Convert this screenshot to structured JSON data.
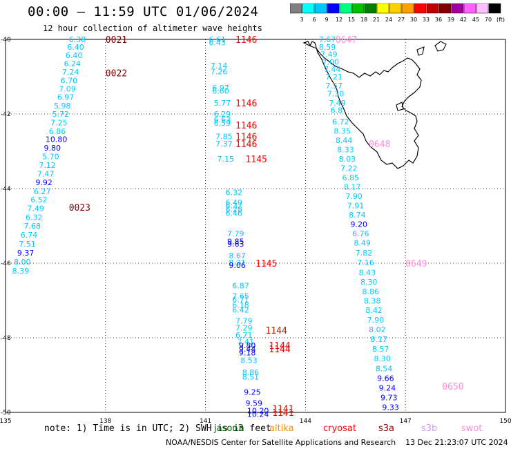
{
  "title": "00:00 – 11:59 UTC 01/06/2024",
  "subtitle": "12 hour collection of altimeter wave heights",
  "colorbar": {
    "labels": [
      "3",
      "6",
      "9",
      "12",
      "15",
      "18",
      "21",
      "24",
      "27",
      "30",
      "33",
      "36",
      "39",
      "42",
      "45",
      "70",
      "(ft)"
    ],
    "colors": [
      "#808080",
      "#00ffff",
      "#00c8ff",
      "#0000ff",
      "#00ff80",
      "#00c000",
      "#008000",
      "#ffff00",
      "#ffd000",
      "#ffa000",
      "#ff0000",
      "#c00000",
      "#800000",
      "#a000a0",
      "#ff60ff",
      "#ffc0ff",
      "#000000"
    ]
  },
  "axes": {
    "lon_ticks": [
      "135",
      "138",
      "141",
      "144",
      "147",
      "150"
    ],
    "lat_ticks": [
      "-40",
      "-42",
      "-44",
      "-46",
      "-48",
      "-50"
    ]
  },
  "note": "note: 1) Time is in UTC; 2) SWH is in feet",
  "satellites": [
    "jason3",
    "altika",
    "cryosat",
    "s3a",
    "s3b",
    "swot"
  ],
  "credit": "NOAA/NESDIS Center for Satellite Applications and Research    13 Dec 21:23:07 UTC 2024",
  "chart_data": {
    "type": "scatter",
    "xlim": [
      135,
      150
    ],
    "ylim": [
      -50,
      -40
    ],
    "time_labels": [
      {
        "text": "0021",
        "lon": 138.0,
        "lat": -40.0,
        "color": "#800000"
      },
      {
        "text": "0022",
        "lon": 138.0,
        "lat": -40.9,
        "color": "#800000"
      },
      {
        "text": "0023",
        "lon": 136.9,
        "lat": -44.5,
        "color": "#800000"
      },
      {
        "text": "1146",
        "lon": 141.9,
        "lat": -40.0,
        "color": "#ff0000"
      },
      {
        "text": "1146",
        "lon": 141.9,
        "lat": -41.7,
        "color": "#ff0000"
      },
      {
        "text": "1146",
        "lon": 141.9,
        "lat": -42.3,
        "color": "#ff0000"
      },
      {
        "text": "1146",
        "lon": 141.9,
        "lat": -42.6,
        "color": "#ff0000"
      },
      {
        "text": "1146",
        "lon": 141.9,
        "lat": -42.8,
        "color": "#ff0000"
      },
      {
        "text": "1145",
        "lon": 142.2,
        "lat": -43.2,
        "color": "#ff0000"
      },
      {
        "text": "1145",
        "lon": 142.5,
        "lat": -46.0,
        "color": "#ff0000"
      },
      {
        "text": "1144",
        "lon": 142.8,
        "lat": -47.8,
        "color": "#ff0000"
      },
      {
        "text": "1144",
        "lon": 142.9,
        "lat": -48.2,
        "color": "#ff0000"
      },
      {
        "text": "1144",
        "lon": 142.9,
        "lat": -48.3,
        "color": "#ff0000"
      },
      {
        "text": "1141",
        "lon": 143.0,
        "lat": -49.9,
        "color": "#ff0000"
      },
      {
        "text": "1141",
        "lon": 143.0,
        "lat": -50.0,
        "color": "#ff0000"
      },
      {
        "text": "0647",
        "lon": 144.9,
        "lat": -40.0,
        "color": "#ff8cd8"
      },
      {
        "text": "0648",
        "lon": 145.9,
        "lat": -42.8,
        "color": "#ff8cd8"
      },
      {
        "text": "0649",
        "lon": 147.0,
        "lat": -46.0,
        "color": "#ff8cd8"
      },
      {
        "text": "0650",
        "lon": 148.1,
        "lat": -49.3,
        "color": "#ff8cd8"
      }
    ],
    "points": [
      {
        "v": "6.38",
        "lon": 136.9,
        "lat": -40.0,
        "c": "#00c8ff"
      },
      {
        "v": "6.40",
        "lon": 136.85,
        "lat": -40.2,
        "c": "#00c8ff"
      },
      {
        "v": "6.40",
        "lon": 136.8,
        "lat": -40.43,
        "c": "#00c8ff"
      },
      {
        "v": "6.24",
        "lon": 136.75,
        "lat": -40.65,
        "c": "#00c8ff"
      },
      {
        "v": "7.24",
        "lon": 136.7,
        "lat": -40.87,
        "c": "#00c8ff"
      },
      {
        "v": "6.70",
        "lon": 136.65,
        "lat": -41.1,
        "c": "#00c8ff"
      },
      {
        "v": "7.09",
        "lon": 136.6,
        "lat": -41.32,
        "c": "#00c8ff"
      },
      {
        "v": "6.97",
        "lon": 136.55,
        "lat": -41.55,
        "c": "#00c8ff"
      },
      {
        "v": "5.98",
        "lon": 136.45,
        "lat": -41.78,
        "c": "#00c8ff"
      },
      {
        "v": "5.72",
        "lon": 136.4,
        "lat": -42.0,
        "c": "#00c8ff"
      },
      {
        "v": "7.25",
        "lon": 136.35,
        "lat": -42.23,
        "c": "#00c8ff"
      },
      {
        "v": "6.86",
        "lon": 136.3,
        "lat": -42.46,
        "c": "#00c8ff"
      },
      {
        "v": "10.80",
        "lon": 136.2,
        "lat": -42.68,
        "c": "#0000ff"
      },
      {
        "v": "9.80",
        "lon": 136.15,
        "lat": -42.91,
        "c": "#0000ff"
      },
      {
        "v": "5.70",
        "lon": 136.1,
        "lat": -43.14,
        "c": "#00c8ff"
      },
      {
        "v": "7.12",
        "lon": 136.0,
        "lat": -43.37,
        "c": "#00c8ff"
      },
      {
        "v": "7.47",
        "lon": 135.95,
        "lat": -43.6,
        "c": "#00c8ff"
      },
      {
        "v": "9.92",
        "lon": 135.9,
        "lat": -43.83,
        "c": "#0000ff"
      },
      {
        "v": "6.27",
        "lon": 135.85,
        "lat": -44.07,
        "c": "#00c8ff"
      },
      {
        "v": "6.52",
        "lon": 135.75,
        "lat": -44.3,
        "c": "#00c8ff"
      },
      {
        "v": "7.49",
        "lon": 135.65,
        "lat": -44.53,
        "c": "#00c8ff"
      },
      {
        "v": "6.32",
        "lon": 135.6,
        "lat": -44.77,
        "c": "#00c8ff"
      },
      {
        "v": "7.68",
        "lon": 135.55,
        "lat": -45.0,
        "c": "#00c8ff"
      },
      {
        "v": "6.74",
        "lon": 135.45,
        "lat": -45.24,
        "c": "#00c8ff"
      },
      {
        "v": "7.51",
        "lon": 135.4,
        "lat": -45.48,
        "c": "#00c8ff"
      },
      {
        "v": "9.37",
        "lon": 135.35,
        "lat": -45.72,
        "c": "#0000ff"
      },
      {
        "v": "8.00",
        "lon": 135.25,
        "lat": -45.96,
        "c": "#00c8ff"
      },
      {
        "v": "8.39",
        "lon": 135.2,
        "lat": -46.2,
        "c": "#00c8ff"
      },
      {
        "v": "6.61",
        "lon": 141.1,
        "lat": -40.0,
        "c": "#00c8ff"
      },
      {
        "v": "6.43",
        "lon": 141.1,
        "lat": -40.08,
        "c": "#00c8ff"
      },
      {
        "v": "7.14",
        "lon": 141.15,
        "lat": -40.7,
        "c": "#00c8ff"
      },
      {
        "v": "7.26",
        "lon": 141.15,
        "lat": -40.86,
        "c": "#00c8ff"
      },
      {
        "v": "6.97",
        "lon": 141.2,
        "lat": -41.3,
        "c": "#00c8ff"
      },
      {
        "v": "6.60",
        "lon": 141.2,
        "lat": -41.38,
        "c": "#00c8ff"
      },
      {
        "v": "5.77",
        "lon": 141.25,
        "lat": -41.7,
        "c": "#00c8ff"
      },
      {
        "v": "6.29",
        "lon": 141.25,
        "lat": -42.0,
        "c": "#00c8ff"
      },
      {
        "v": "6.63",
        "lon": 141.25,
        "lat": -42.15,
        "c": "#00c8ff"
      },
      {
        "v": "6.59",
        "lon": 141.25,
        "lat": -42.24,
        "c": "#00c8ff"
      },
      {
        "v": "7.85",
        "lon": 141.3,
        "lat": -42.6,
        "c": "#00c8ff"
      },
      {
        "v": "7.37",
        "lon": 141.3,
        "lat": -42.8,
        "c": "#00c8ff"
      },
      {
        "v": "7.15",
        "lon": 141.35,
        "lat": -43.2,
        "c": "#00c8ff"
      },
      {
        "v": "6.32",
        "lon": 141.6,
        "lat": -44.1,
        "c": "#00c8ff"
      },
      {
        "v": "6.49",
        "lon": 141.6,
        "lat": -44.37,
        "c": "#00c8ff"
      },
      {
        "v": "6.37",
        "lon": 141.6,
        "lat": -44.45,
        "c": "#00c8ff"
      },
      {
        "v": "6.28",
        "lon": 141.6,
        "lat": -44.56,
        "c": "#00c8ff"
      },
      {
        "v": "6.46",
        "lon": 141.6,
        "lat": -44.66,
        "c": "#00c8ff"
      },
      {
        "v": "7.79",
        "lon": 141.65,
        "lat": -45.2,
        "c": "#00c8ff"
      },
      {
        "v": "9.85",
        "lon": 141.65,
        "lat": -45.42,
        "c": "#0000ff"
      },
      {
        "v": "9.63",
        "lon": 141.65,
        "lat": -45.48,
        "c": "#0000ff"
      },
      {
        "v": "8.67",
        "lon": 141.7,
        "lat": -45.8,
        "c": "#00c8ff"
      },
      {
        "v": "8.31",
        "lon": 141.7,
        "lat": -45.98,
        "c": "#00c8ff"
      },
      {
        "v": "9.06",
        "lon": 141.7,
        "lat": -46.06,
        "c": "#0000ff"
      },
      {
        "v": "6.87",
        "lon": 141.8,
        "lat": -46.6,
        "c": "#00c8ff"
      },
      {
        "v": "7.65",
        "lon": 141.8,
        "lat": -46.88,
        "c": "#00c8ff"
      },
      {
        "v": "6.71",
        "lon": 141.8,
        "lat": -46.97,
        "c": "#00c8ff"
      },
      {
        "v": "6.18",
        "lon": 141.8,
        "lat": -47.12,
        "c": "#00c8ff"
      },
      {
        "v": "6.42",
        "lon": 141.8,
        "lat": -47.25,
        "c": "#00c8ff"
      },
      {
        "v": "7.79",
        "lon": 141.9,
        "lat": -47.55,
        "c": "#00c8ff"
      },
      {
        "v": "7.29",
        "lon": 141.9,
        "lat": -47.73,
        "c": "#00c8ff"
      },
      {
        "v": "6.71",
        "lon": 141.9,
        "lat": -47.93,
        "c": "#00c8ff"
      },
      {
        "v": "7.41",
        "lon": 141.95,
        "lat": -48.1,
        "c": "#00c8ff"
      },
      {
        "v": "9.80",
        "lon": 142.0,
        "lat": -48.2,
        "c": "#0000ff"
      },
      {
        "v": "9.44",
        "lon": 142.0,
        "lat": -48.3,
        "c": "#0000ff"
      },
      {
        "v": "9.18",
        "lon": 142.0,
        "lat": -48.4,
        "c": "#0000ff"
      },
      {
        "v": "8.53",
        "lon": 142.05,
        "lat": -48.6,
        "c": "#00c8ff"
      },
      {
        "v": "8.86",
        "lon": 142.1,
        "lat": -48.93,
        "c": "#00c8ff"
      },
      {
        "v": "8.51",
        "lon": 142.1,
        "lat": -49.05,
        "c": "#00c8ff"
      },
      {
        "v": "9.25",
        "lon": 142.15,
        "lat": -49.45,
        "c": "#0000ff"
      },
      {
        "v": "9.59",
        "lon": 142.2,
        "lat": -49.75,
        "c": "#0000ff"
      },
      {
        "v": "10.20",
        "lon": 142.25,
        "lat": -49.95,
        "c": "#0000ff"
      },
      {
        "v": "10.24",
        "lon": 142.25,
        "lat": -50.05,
        "c": "#0000ff"
      },
      {
        "v": "7.67",
        "lon": 144.4,
        "lat": -40.0,
        "c": "#00c8ff"
      },
      {
        "v": "8.59",
        "lon": 144.4,
        "lat": -40.2,
        "c": "#00c8ff"
      },
      {
        "v": "7.49",
        "lon": 144.45,
        "lat": -40.4,
        "c": "#00c8ff"
      },
      {
        "v": "7.00",
        "lon": 144.5,
        "lat": -40.6,
        "c": "#00c8ff"
      },
      {
        "v": "7.44",
        "lon": 144.55,
        "lat": -40.8,
        "c": "#00c8ff"
      },
      {
        "v": "7.21",
        "lon": 144.6,
        "lat": -41.0,
        "c": "#00c8ff"
      },
      {
        "v": "7.57",
        "lon": 144.6,
        "lat": -41.24,
        "c": "#00c8ff"
      },
      {
        "v": "7.30",
        "lon": 144.65,
        "lat": -41.45,
        "c": "#00c8ff"
      },
      {
        "v": "7.49",
        "lon": 144.7,
        "lat": -41.7,
        "c": "#00c8ff"
      },
      {
        "v": "6.8",
        "lon": 144.75,
        "lat": -41.9,
        "c": "#00c8ff"
      },
      {
        "v": "6.72",
        "lon": 144.8,
        "lat": -42.2,
        "c": "#00c8ff"
      },
      {
        "v": "8.35",
        "lon": 144.85,
        "lat": -42.45,
        "c": "#00c8ff"
      },
      {
        "v": "8.44",
        "lon": 144.9,
        "lat": -42.7,
        "c": "#00c8ff"
      },
      {
        "v": "8.33",
        "lon": 144.95,
        "lat": -42.95,
        "c": "#00c8ff"
      },
      {
        "v": "8.03",
        "lon": 145.0,
        "lat": -43.2,
        "c": "#00c8ff"
      },
      {
        "v": "7.22",
        "lon": 145.05,
        "lat": -43.45,
        "c": "#00c8ff"
      },
      {
        "v": "6.85",
        "lon": 145.1,
        "lat": -43.7,
        "c": "#00c8ff"
      },
      {
        "v": "8.17",
        "lon": 145.15,
        "lat": -43.95,
        "c": "#00c8ff"
      },
      {
        "v": "7.90",
        "lon": 145.2,
        "lat": -44.2,
        "c": "#00c8ff"
      },
      {
        "v": "7.91",
        "lon": 145.25,
        "lat": -44.45,
        "c": "#00c8ff"
      },
      {
        "v": "8.74",
        "lon": 145.3,
        "lat": -44.7,
        "c": "#00c8ff"
      },
      {
        "v": "9.20",
        "lon": 145.35,
        "lat": -44.95,
        "c": "#0000ff"
      },
      {
        "v": "6.76",
        "lon": 145.4,
        "lat": -45.2,
        "c": "#00c8ff"
      },
      {
        "v": "8.49",
        "lon": 145.45,
        "lat": -45.45,
        "c": "#00c8ff"
      },
      {
        "v": "7.82",
        "lon": 145.5,
        "lat": -45.72,
        "c": "#00c8ff"
      },
      {
        "v": "7.16",
        "lon": 145.55,
        "lat": -45.98,
        "c": "#00c8ff"
      },
      {
        "v": "8.43",
        "lon": 145.6,
        "lat": -46.25,
        "c": "#00c8ff"
      },
      {
        "v": "8.30",
        "lon": 145.65,
        "lat": -46.5,
        "c": "#00c8ff"
      },
      {
        "v": "8.86",
        "lon": 145.7,
        "lat": -46.76,
        "c": "#00c8ff"
      },
      {
        "v": "8.38",
        "lon": 145.75,
        "lat": -47.01,
        "c": "#00c8ff"
      },
      {
        "v": "8.42",
        "lon": 145.8,
        "lat": -47.26,
        "c": "#00c8ff"
      },
      {
        "v": "7.90",
        "lon": 145.85,
        "lat": -47.52,
        "c": "#00c8ff"
      },
      {
        "v": "8.02",
        "lon": 145.9,
        "lat": -47.78,
        "c": "#00c8ff"
      },
      {
        "v": "8.17",
        "lon": 145.95,
        "lat": -48.04,
        "c": "#00c8ff"
      },
      {
        "v": "8.57",
        "lon": 146.0,
        "lat": -48.3,
        "c": "#00c8ff"
      },
      {
        "v": "8.30",
        "lon": 146.05,
        "lat": -48.56,
        "c": "#00c8ff"
      },
      {
        "v": "8.54",
        "lon": 146.1,
        "lat": -48.82,
        "c": "#00c8ff"
      },
      {
        "v": "9.66",
        "lon": 146.15,
        "lat": -49.08,
        "c": "#0000ff"
      },
      {
        "v": "9.24",
        "lon": 146.2,
        "lat": -49.34,
        "c": "#0000ff"
      },
      {
        "v": "9.73",
        "lon": 146.25,
        "lat": -49.6,
        "c": "#0000ff"
      },
      {
        "v": "9.33",
        "lon": 146.3,
        "lat": -49.86,
        "c": "#0000ff"
      }
    ]
  }
}
